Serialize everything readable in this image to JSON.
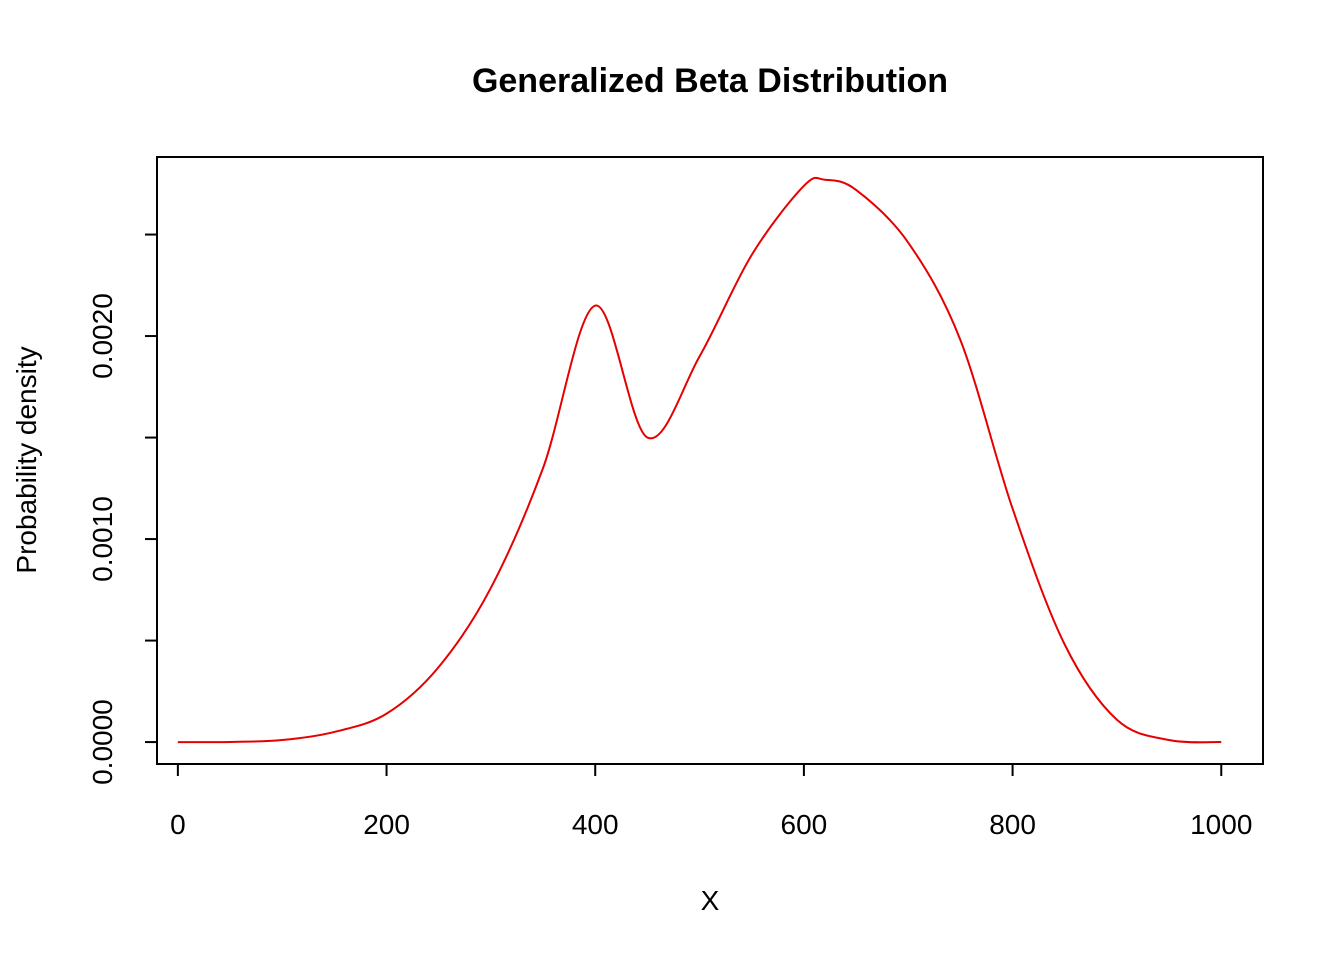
{
  "chart_data": {
    "type": "line",
    "title": "Generalized Beta Distribution",
    "xlabel": "X",
    "ylabel": "Probability density",
    "xlim": [
      -20,
      1040
    ],
    "ylim": [
      -0.000108,
      0.002882
    ],
    "x_ticks": [
      0,
      200,
      400,
      600,
      800,
      1000
    ],
    "x_tick_labels": [
      "0",
      "200",
      "400",
      "600",
      "800",
      "1000"
    ],
    "y_ticks": [
      0,
      0.0005,
      0.001,
      0.0015,
      0.002,
      0.0025
    ],
    "y_tick_labels": [
      "0.0000",
      "",
      "0.0010",
      "",
      "0.0020",
      ""
    ],
    "grid": false,
    "series": [
      {
        "color": "#e60000",
        "x": [
          0,
          50,
          100,
          150,
          200,
          250,
          300,
          350,
          400,
          450,
          500,
          550,
          600,
          620,
          650,
          700,
          750,
          800,
          850,
          900,
          950,
          1000
        ],
        "y": [
          0,
          5e-07,
          1e-05,
          5e-05,
          0.00014,
          0.00037,
          0.00076,
          0.00135,
          0.00215,
          0.0015,
          0.0019,
          0.0024,
          0.00274,
          0.00277,
          0.00272,
          0.00246,
          0.00198,
          0.00115,
          0.00048,
          0.00011,
          1e-05,
          0
        ]
      }
    ]
  }
}
